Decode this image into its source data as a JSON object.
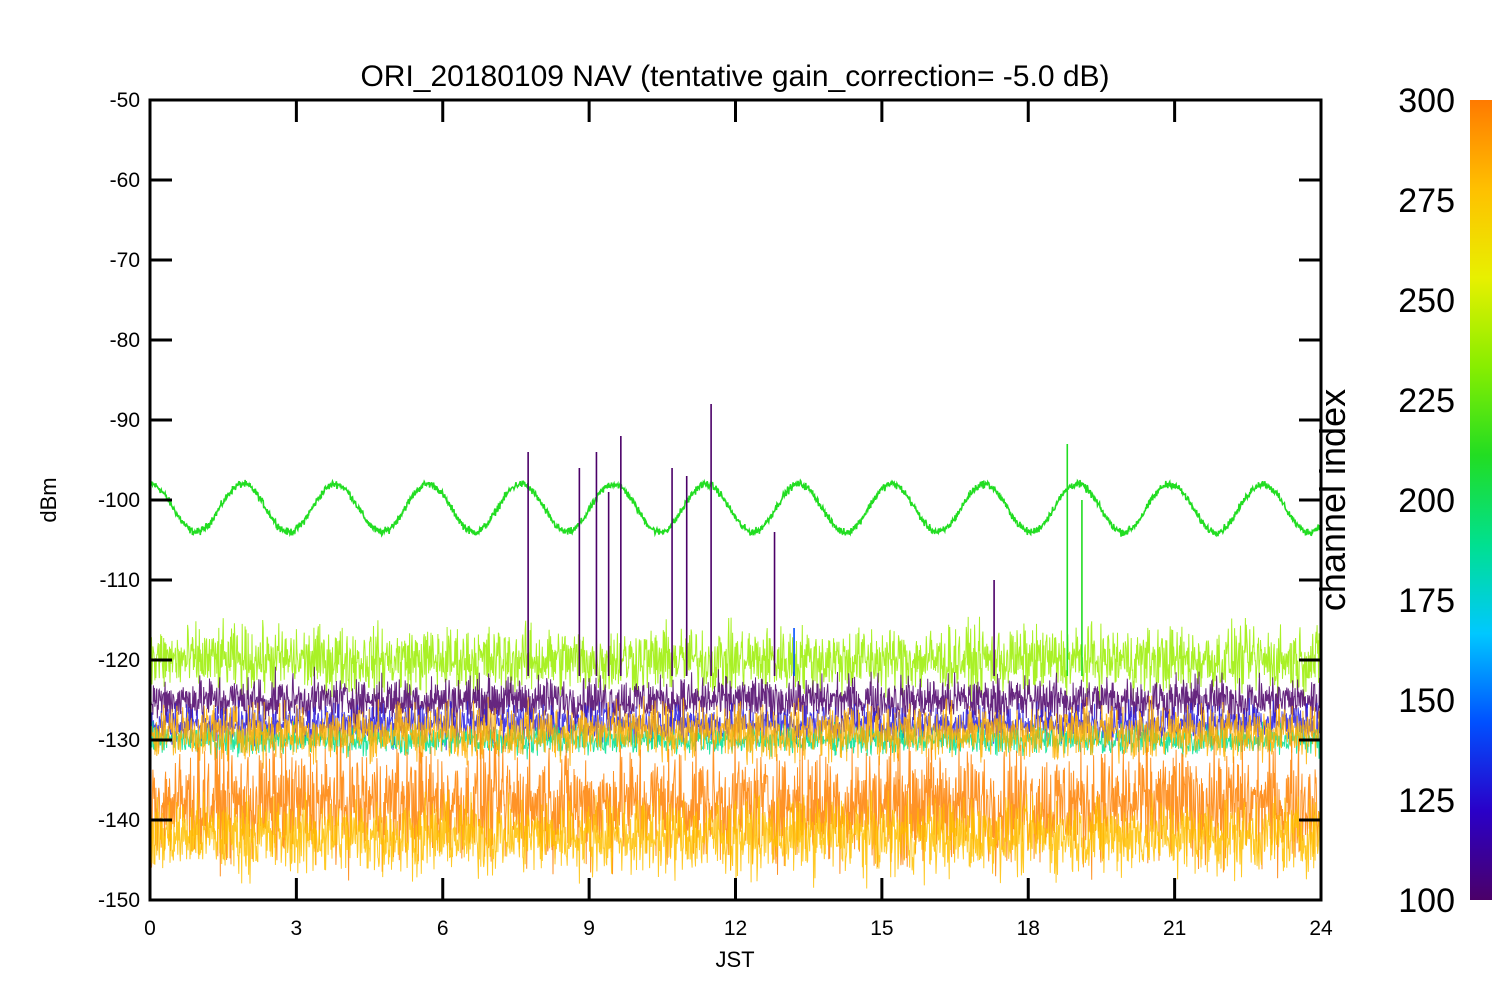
{
  "chart_data": {
    "type": "line",
    "title": "ORI_20180109 NAV (tentative gain_correction= -5.0 dB)",
    "xlabel": "JST",
    "ylabel": "dBm",
    "xlim": [
      0,
      24
    ],
    "ylim": [
      -150,
      -50
    ],
    "xticks": [
      0,
      3,
      6,
      9,
      12,
      15,
      18,
      21,
      24
    ],
    "yticks": [
      -50,
      -60,
      -70,
      -80,
      -90,
      -100,
      -110,
      -120,
      -130,
      -140,
      -150
    ],
    "grid": false,
    "colorbar": {
      "label": "channel index",
      "range": [
        100,
        300
      ],
      "ticks": [
        100,
        125,
        150,
        175,
        200,
        225,
        250,
        275,
        300
      ],
      "colormap": [
        "#4b0068",
        "#2a00c8",
        "#0050ff",
        "#00c8ff",
        "#00e090",
        "#22dd22",
        "#88ee00",
        "#e8f000",
        "#ffc000",
        "#ff7a00"
      ]
    },
    "series": [
      {
        "channel_index": 215,
        "color": "#22dd22",
        "kind": "sinusoid",
        "mean": -101,
        "amplitude": 3,
        "period_hours": 1.9,
        "noise": 0.4
      },
      {
        "channel_index": 255,
        "color": "#9aee00",
        "kind": "noise-band",
        "center": -120,
        "spread": 3.5
      },
      {
        "channel_index": 110,
        "color": "#4b0068",
        "kind": "noise-band",
        "center": -125,
        "spread": 2.5
      },
      {
        "channel_index": 140,
        "color": "#2a20e0",
        "kind": "noise-band",
        "center": -128,
        "spread": 2
      },
      {
        "channel_index": 200,
        "color": "#00e090",
        "kind": "noise-band",
        "center": -130,
        "spread": 1.5
      },
      {
        "channel_index": 285,
        "color": "#ffb000",
        "kind": "noise-band",
        "center": -129,
        "spread": 3
      },
      {
        "channel_index": 300,
        "color": "#ff8000",
        "kind": "noise-band",
        "center": -138,
        "spread": 6
      },
      {
        "channel_index": 280,
        "color": "#ffc000",
        "kind": "noise-band",
        "center": -142,
        "spread": 4
      }
    ],
    "spikes": [
      {
        "x": 7.75,
        "y": -94,
        "color": "#4b0068"
      },
      {
        "x": 8.8,
        "y": -96,
        "color": "#4b0068"
      },
      {
        "x": 9.15,
        "y": -94,
        "color": "#4b0068"
      },
      {
        "x": 9.4,
        "y": -99,
        "color": "#4b0068"
      },
      {
        "x": 9.65,
        "y": -92,
        "color": "#4b0068"
      },
      {
        "x": 10.7,
        "y": -96,
        "color": "#4b0068"
      },
      {
        "x": 11.0,
        "y": -97,
        "color": "#4b0068"
      },
      {
        "x": 11.5,
        "y": -88,
        "color": "#4b0068"
      },
      {
        "x": 12.8,
        "y": -104,
        "color": "#4b0068"
      },
      {
        "x": 13.2,
        "y": -116,
        "color": "#0050ff"
      },
      {
        "x": 17.3,
        "y": -110,
        "color": "#4b0068"
      },
      {
        "x": 18.8,
        "y": -93,
        "color": "#22dd22"
      },
      {
        "x": 19.1,
        "y": -100,
        "color": "#22dd22"
      }
    ]
  }
}
